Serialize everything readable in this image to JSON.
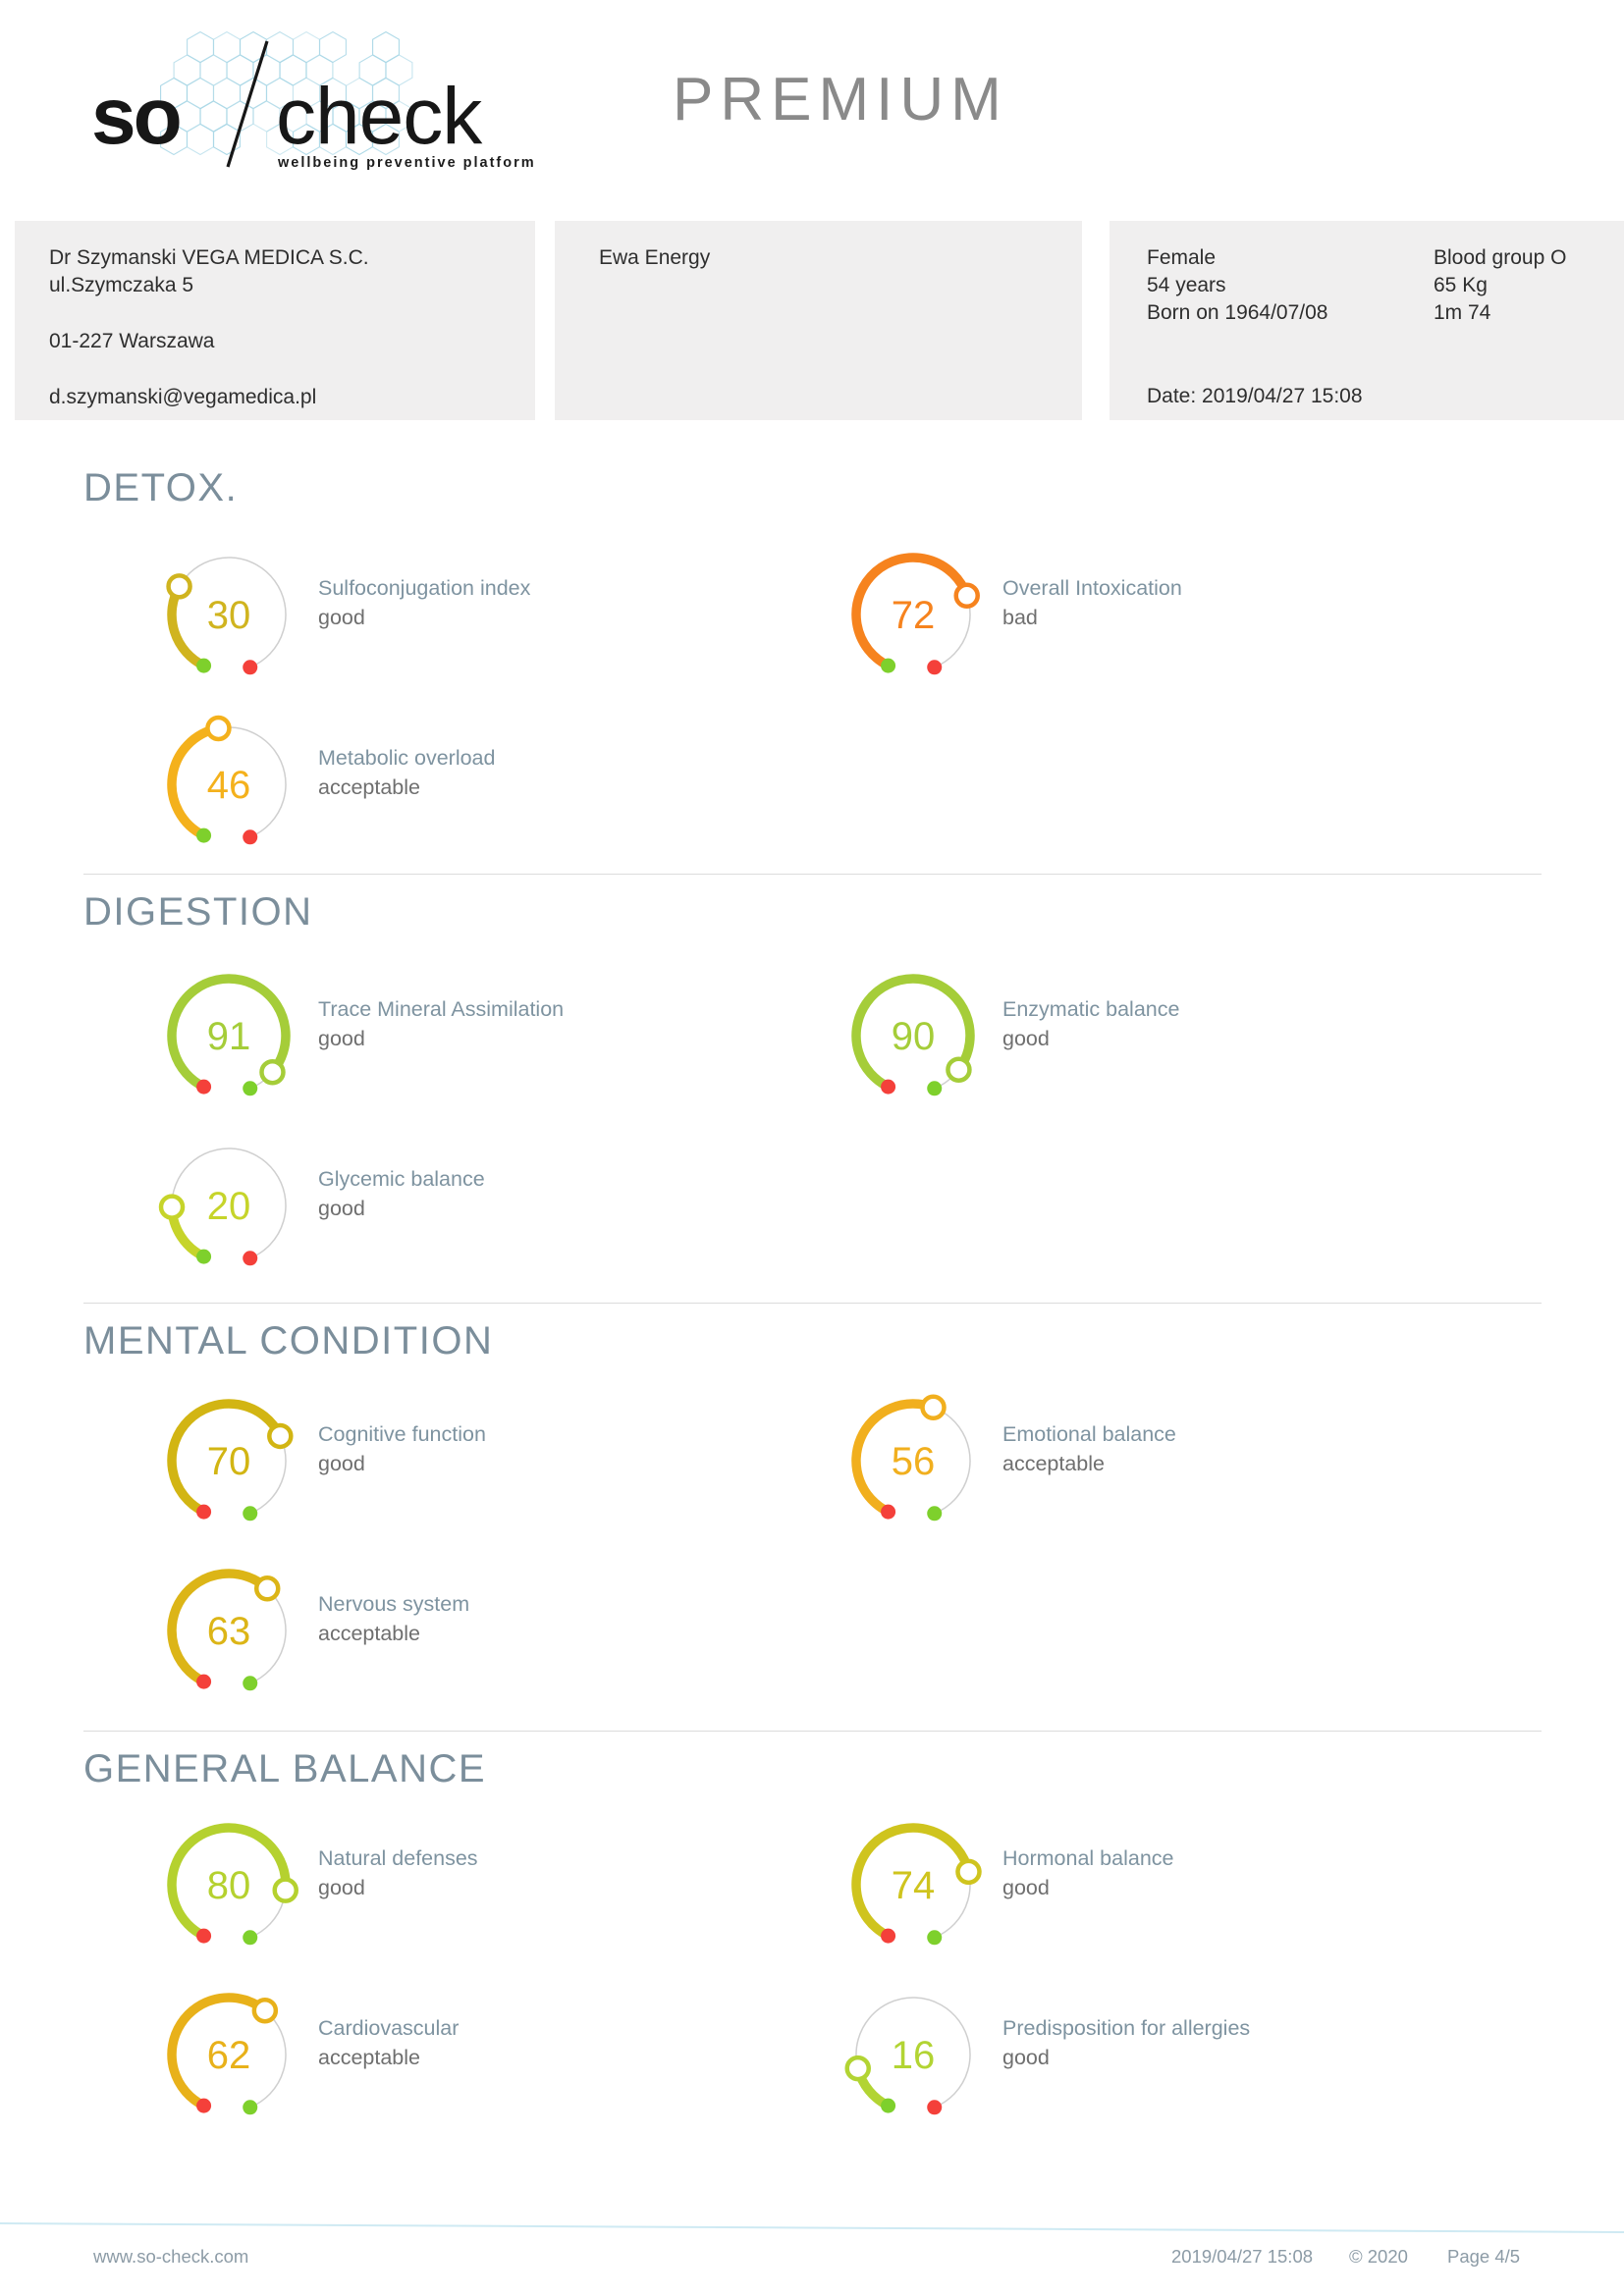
{
  "logo": {
    "word_bold": "so",
    "word_regular": "check",
    "tagline": "wellbeing preventive platform",
    "honeycomb_color": "#a9d7e6"
  },
  "plan_label": "PREMIUM",
  "practitioner_box": {
    "name": "Dr Szymanski VEGA MEDICA S.C.",
    "street": "ul.Szymczaka 5",
    "city": "01-227 Warszawa",
    "email": "d.szymanski@vegamedica.pl"
  },
  "client_box": {
    "name": "Ewa Energy"
  },
  "patient_box": {
    "sex": "Female",
    "age": "54 years",
    "born": "Born on 1964/07/08",
    "blood_group": "Blood group O",
    "weight": "65 Kg",
    "height": "1m 74",
    "date": "Date: 2019/04/27 15:08"
  },
  "colors": {
    "section_title": "#7b8e9b",
    "gauge_track": "#cfcfcf",
    "green_dot": "#7ed02c",
    "red_dot": "#f4403a",
    "label": "#7e93a0",
    "status": "#6f6f6f"
  },
  "sections": [
    {
      "title": "DETOX.",
      "gauges": [
        {
          "value": 30,
          "label": "Sulfoconjugation index",
          "status": "good",
          "color": "#d0b41f",
          "start_dot": "green",
          "end_dot": "red",
          "col": 0,
          "row": 0
        },
        {
          "value": 72,
          "label": "Overall Intoxication",
          "status": "bad",
          "color": "#f6831e",
          "start_dot": "green",
          "end_dot": "red",
          "col": 1,
          "row": 0
        },
        {
          "value": 46,
          "label": "Metabolic overload",
          "status": "acceptable",
          "color": "#f4b11c",
          "start_dot": "green",
          "end_dot": "red",
          "col": 0,
          "row": 1
        }
      ]
    },
    {
      "title": "DIGESTION",
      "gauges": [
        {
          "value": 91,
          "label": "Trace Mineral Assimilation",
          "status": "good",
          "color": "#a5cd39",
          "start_dot": "red",
          "end_dot": "green",
          "col": 0,
          "row": 0
        },
        {
          "value": 90,
          "label": "Enzymatic balance",
          "status": "good",
          "color": "#a5cd39",
          "start_dot": "red",
          "end_dot": "green",
          "col": 1,
          "row": 0
        },
        {
          "value": 20,
          "label": "Glycemic balance",
          "status": "good",
          "color": "#c6d42a",
          "start_dot": "green",
          "end_dot": "red",
          "col": 0,
          "row": 1
        }
      ]
    },
    {
      "title": "MENTAL CONDITION",
      "gauges": [
        {
          "value": 70,
          "label": "Cognitive function",
          "status": "good",
          "color": "#d2b513",
          "start_dot": "red",
          "end_dot": "green",
          "col": 0,
          "row": 0
        },
        {
          "value": 56,
          "label": "Emotional balance",
          "status": "acceptable",
          "color": "#f1af1e",
          "start_dot": "red",
          "end_dot": "green",
          "col": 1,
          "row": 0
        },
        {
          "value": 63,
          "label": "Nervous system",
          "status": "acceptable",
          "color": "#dcb517",
          "start_dot": "red",
          "end_dot": "green",
          "col": 0,
          "row": 1
        }
      ]
    },
    {
      "title": "GENERAL BALANCE",
      "gauges": [
        {
          "value": 80,
          "label": "Natural defenses",
          "status": "good",
          "color": "#b5d12f",
          "start_dot": "red",
          "end_dot": "green",
          "col": 0,
          "row": 0
        },
        {
          "value": 74,
          "label": "Hormonal balance",
          "status": "good",
          "color": "#cfc41e",
          "start_dot": "red",
          "end_dot": "green",
          "col": 1,
          "row": 0
        },
        {
          "value": 62,
          "label": "Cardiovascular",
          "status": "acceptable",
          "color": "#e8b11a",
          "start_dot": "red",
          "end_dot": "green",
          "col": 0,
          "row": 1
        },
        {
          "value": 16,
          "label": "Predisposition for allergies",
          "status": "good",
          "color": "#b2d433",
          "start_dot": "green",
          "end_dot": "red",
          "col": 1,
          "row": 1
        }
      ]
    }
  ],
  "footer": {
    "website": "www.so-check.com",
    "datetime": "2019/04/27 15:08",
    "copyright": "© 2020",
    "page": "Page 4/5"
  }
}
